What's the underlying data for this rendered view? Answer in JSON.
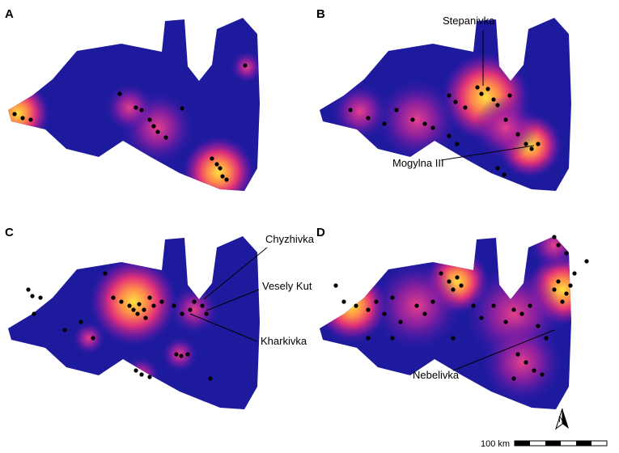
{
  "panels": [
    {
      "label": "A",
      "sites": []
    },
    {
      "label": "B",
      "sites": [
        "Stepanivka",
        "Mogylna III"
      ]
    },
    {
      "label": "C",
      "sites": [
        "Chyzhivka",
        "Vesely Kut",
        "Kharkivka"
      ]
    },
    {
      "label": "D",
      "sites": [
        "Nebelivka"
      ]
    }
  ],
  "scale_bar": "100 km",
  "north_label": "N"
}
